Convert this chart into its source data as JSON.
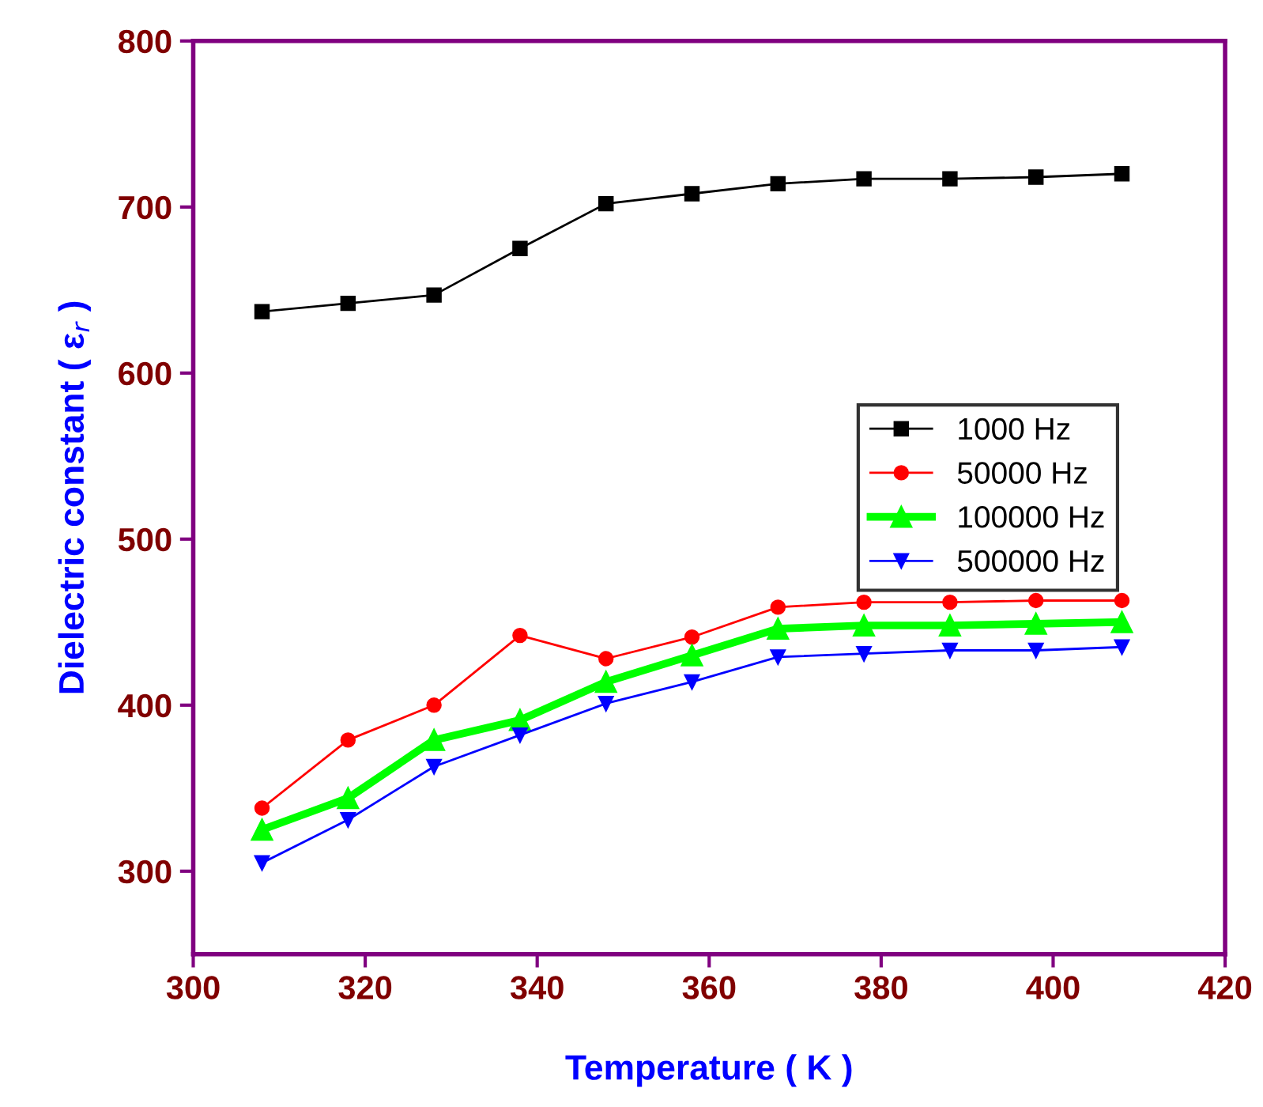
{
  "chart_data": {
    "type": "line",
    "xlabel": "Temperature ( K )",
    "ylabel": "Dielectric constant ( ε$_{r}$ )",
    "x": [
      308,
      318,
      328,
      338,
      348,
      358,
      368,
      378,
      388,
      398,
      408
    ],
    "xlim": [
      300,
      420
    ],
    "xticks": [
      300,
      320,
      340,
      360,
      380,
      400,
      420
    ],
    "ylim": [
      250,
      800
    ],
    "yticks": [
      300,
      400,
      500,
      600,
      700,
      800
    ],
    "legend": "center right",
    "grid": false,
    "series": [
      {
        "name": "1000 Hz",
        "color": "#000000",
        "marker": "square",
        "values": [
          637,
          642,
          647,
          675,
          702,
          708,
          714,
          717,
          717,
          718,
          720
        ]
      },
      {
        "name": "50000 Hz",
        "color": "#ff0000",
        "marker": "circle",
        "values": [
          338,
          379,
          400,
          442,
          428,
          441,
          459,
          462,
          462,
          463,
          463
        ]
      },
      {
        "name": "100000 Hz",
        "color": "#00ff00",
        "marker": "triangle",
        "values": [
          325,
          344,
          379,
          391,
          414,
          430,
          446,
          448,
          448,
          449,
          450
        ]
      },
      {
        "name": "500000 Hz",
        "color": "#0000ff",
        "marker": "triangle_down",
        "values": [
          305,
          331,
          363,
          382,
          401,
          414,
          429,
          431,
          433,
          433,
          435
        ]
      }
    ]
  }
}
